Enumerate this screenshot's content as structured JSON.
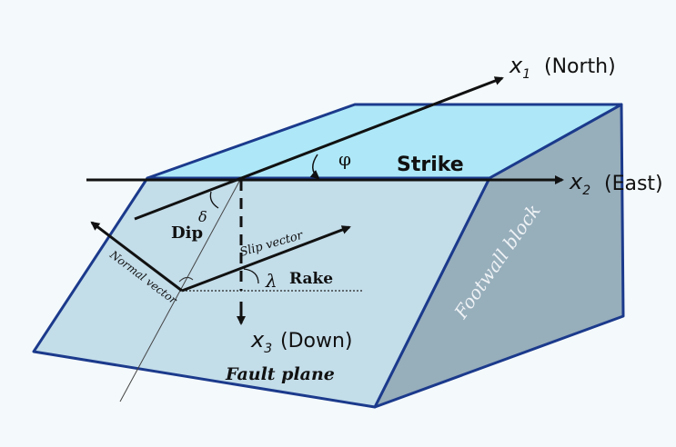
{
  "colors": {
    "background": "#f4f9fb",
    "top_face": "#aee8f8",
    "front_face": "#c3dde9",
    "side_face": "#97aebb",
    "edge": "#1b3a8c",
    "arrow": "#111111"
  },
  "labels": {
    "x1": "x",
    "x1_sub": "1",
    "north": "(North)",
    "x2": "x",
    "x2_sub": "2",
    "east": "(East)",
    "x3": "x",
    "x3_sub": "3",
    "down": "(Down)",
    "strike": "Strike",
    "phi": "φ",
    "dip": "Dip",
    "delta": "δ",
    "slip_vector": "Slip vector",
    "normal_vector": "Normal vector",
    "lambda": "λ",
    "rake": "Rake",
    "fault_plane": "Fault plane",
    "footwall_block": "Footwall block"
  }
}
